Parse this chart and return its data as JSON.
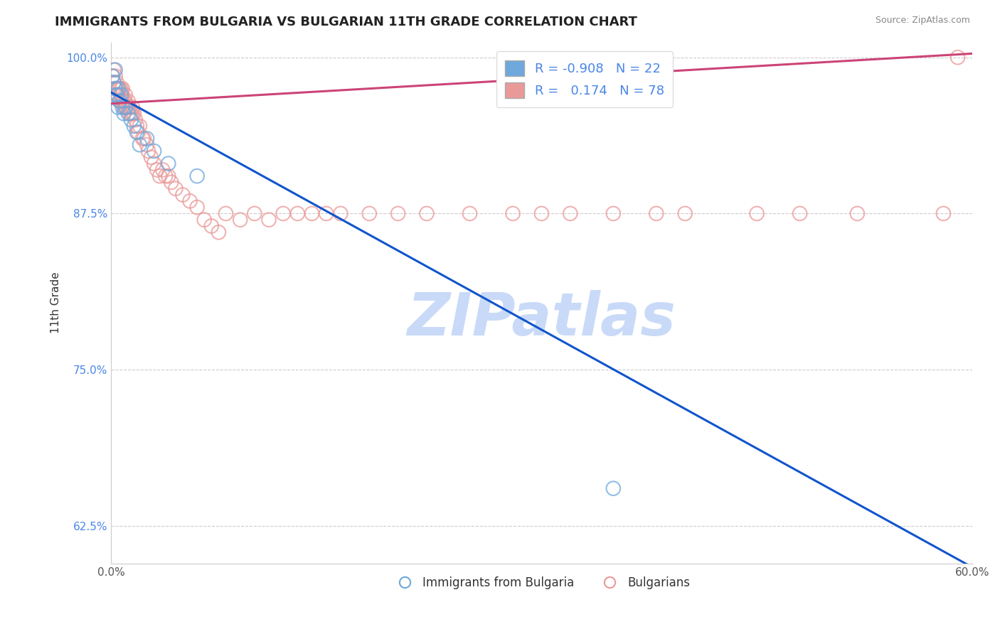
{
  "title": "IMMIGRANTS FROM BULGARIA VS BULGARIAN 11TH GRADE CORRELATION CHART",
  "source_text": "Source: ZipAtlas.com",
  "xlabel": "",
  "ylabel": "11th Grade",
  "xmin": 0.0,
  "xmax": 0.6,
  "ymin": 0.595,
  "ymax": 1.012,
  "yticks": [
    1.0,
    0.875,
    0.75,
    0.625
  ],
  "ytick_labels": [
    "100.0%",
    "87.5%",
    "75.0%",
    "62.5%"
  ],
  "xticks": [
    0.0,
    0.1,
    0.2,
    0.3,
    0.4,
    0.5,
    0.6
  ],
  "xtick_labels": [
    "0.0%",
    "",
    "",
    "",
    "",
    "",
    "60.0%"
  ],
  "blue_R": -0.908,
  "blue_N": 22,
  "pink_R": 0.174,
  "pink_N": 78,
  "blue_color": "#6fa8dc",
  "pink_color": "#ea9999",
  "blue_line_color": "#1155cc",
  "pink_line_color": "#cc4477",
  "watermark_text": "ZIPatlas",
  "watermark_color": "#c9daf8",
  "legend_label_blue": "Immigrants from Bulgaria",
  "legend_label_pink": "Bulgarians",
  "title_fontsize": 13,
  "axis_label_color": "#333333",
  "tick_color_y": "#4a86e8",
  "tick_color_x": "#555555",
  "grid_color": "#cccccc",
  "blue_line_x0": 0.0,
  "blue_line_y0": 0.972,
  "blue_line_x1": 0.6,
  "blue_line_y1": 0.592,
  "pink_line_x0": 0.0,
  "pink_line_y0": 0.963,
  "pink_line_x1": 0.6,
  "pink_line_y1": 1.003,
  "blue_scatter_x": [
    0.001,
    0.002,
    0.003,
    0.003,
    0.004,
    0.005,
    0.005,
    0.006,
    0.007,
    0.008,
    0.009,
    0.01,
    0.012,
    0.014,
    0.016,
    0.018,
    0.02,
    0.025,
    0.03,
    0.04,
    0.06,
    0.35
  ],
  "blue_scatter_y": [
    0.985,
    0.98,
    0.975,
    0.99,
    0.97,
    0.975,
    0.96,
    0.965,
    0.97,
    0.96,
    0.955,
    0.96,
    0.955,
    0.95,
    0.945,
    0.94,
    0.93,
    0.935,
    0.925,
    0.915,
    0.905,
    0.655
  ],
  "pink_scatter_x": [
    0.001,
    0.002,
    0.002,
    0.003,
    0.003,
    0.003,
    0.004,
    0.004,
    0.005,
    0.005,
    0.006,
    0.006,
    0.007,
    0.007,
    0.008,
    0.008,
    0.008,
    0.009,
    0.009,
    0.01,
    0.01,
    0.01,
    0.011,
    0.012,
    0.012,
    0.013,
    0.013,
    0.014,
    0.015,
    0.015,
    0.016,
    0.017,
    0.018,
    0.019,
    0.02,
    0.022,
    0.023,
    0.025,
    0.026,
    0.028,
    0.03,
    0.032,
    0.034,
    0.036,
    0.038,
    0.04,
    0.042,
    0.045,
    0.05,
    0.055,
    0.06,
    0.065,
    0.07,
    0.075,
    0.08,
    0.09,
    0.1,
    0.11,
    0.12,
    0.13,
    0.14,
    0.15,
    0.16,
    0.18,
    0.2,
    0.22,
    0.25,
    0.28,
    0.3,
    0.32,
    0.35,
    0.38,
    0.4,
    0.45,
    0.48,
    0.52,
    0.58,
    0.59
  ],
  "pink_scatter_y": [
    0.985,
    0.99,
    0.98,
    0.985,
    0.975,
    0.97,
    0.98,
    0.975,
    0.975,
    0.97,
    0.975,
    0.965,
    0.975,
    0.965,
    0.975,
    0.965,
    0.97,
    0.965,
    0.96,
    0.97,
    0.965,
    0.96,
    0.96,
    0.965,
    0.96,
    0.955,
    0.96,
    0.955,
    0.96,
    0.955,
    0.955,
    0.95,
    0.945,
    0.94,
    0.945,
    0.935,
    0.935,
    0.93,
    0.925,
    0.92,
    0.915,
    0.91,
    0.905,
    0.91,
    0.905,
    0.905,
    0.9,
    0.895,
    0.89,
    0.885,
    0.88,
    0.87,
    0.865,
    0.86,
    0.875,
    0.87,
    0.875,
    0.87,
    0.875,
    0.875,
    0.875,
    0.875,
    0.875,
    0.875,
    0.875,
    0.875,
    0.875,
    0.875,
    0.875,
    0.875,
    0.875,
    0.875,
    0.875,
    0.875,
    0.875,
    0.875,
    0.875,
    1.0
  ]
}
